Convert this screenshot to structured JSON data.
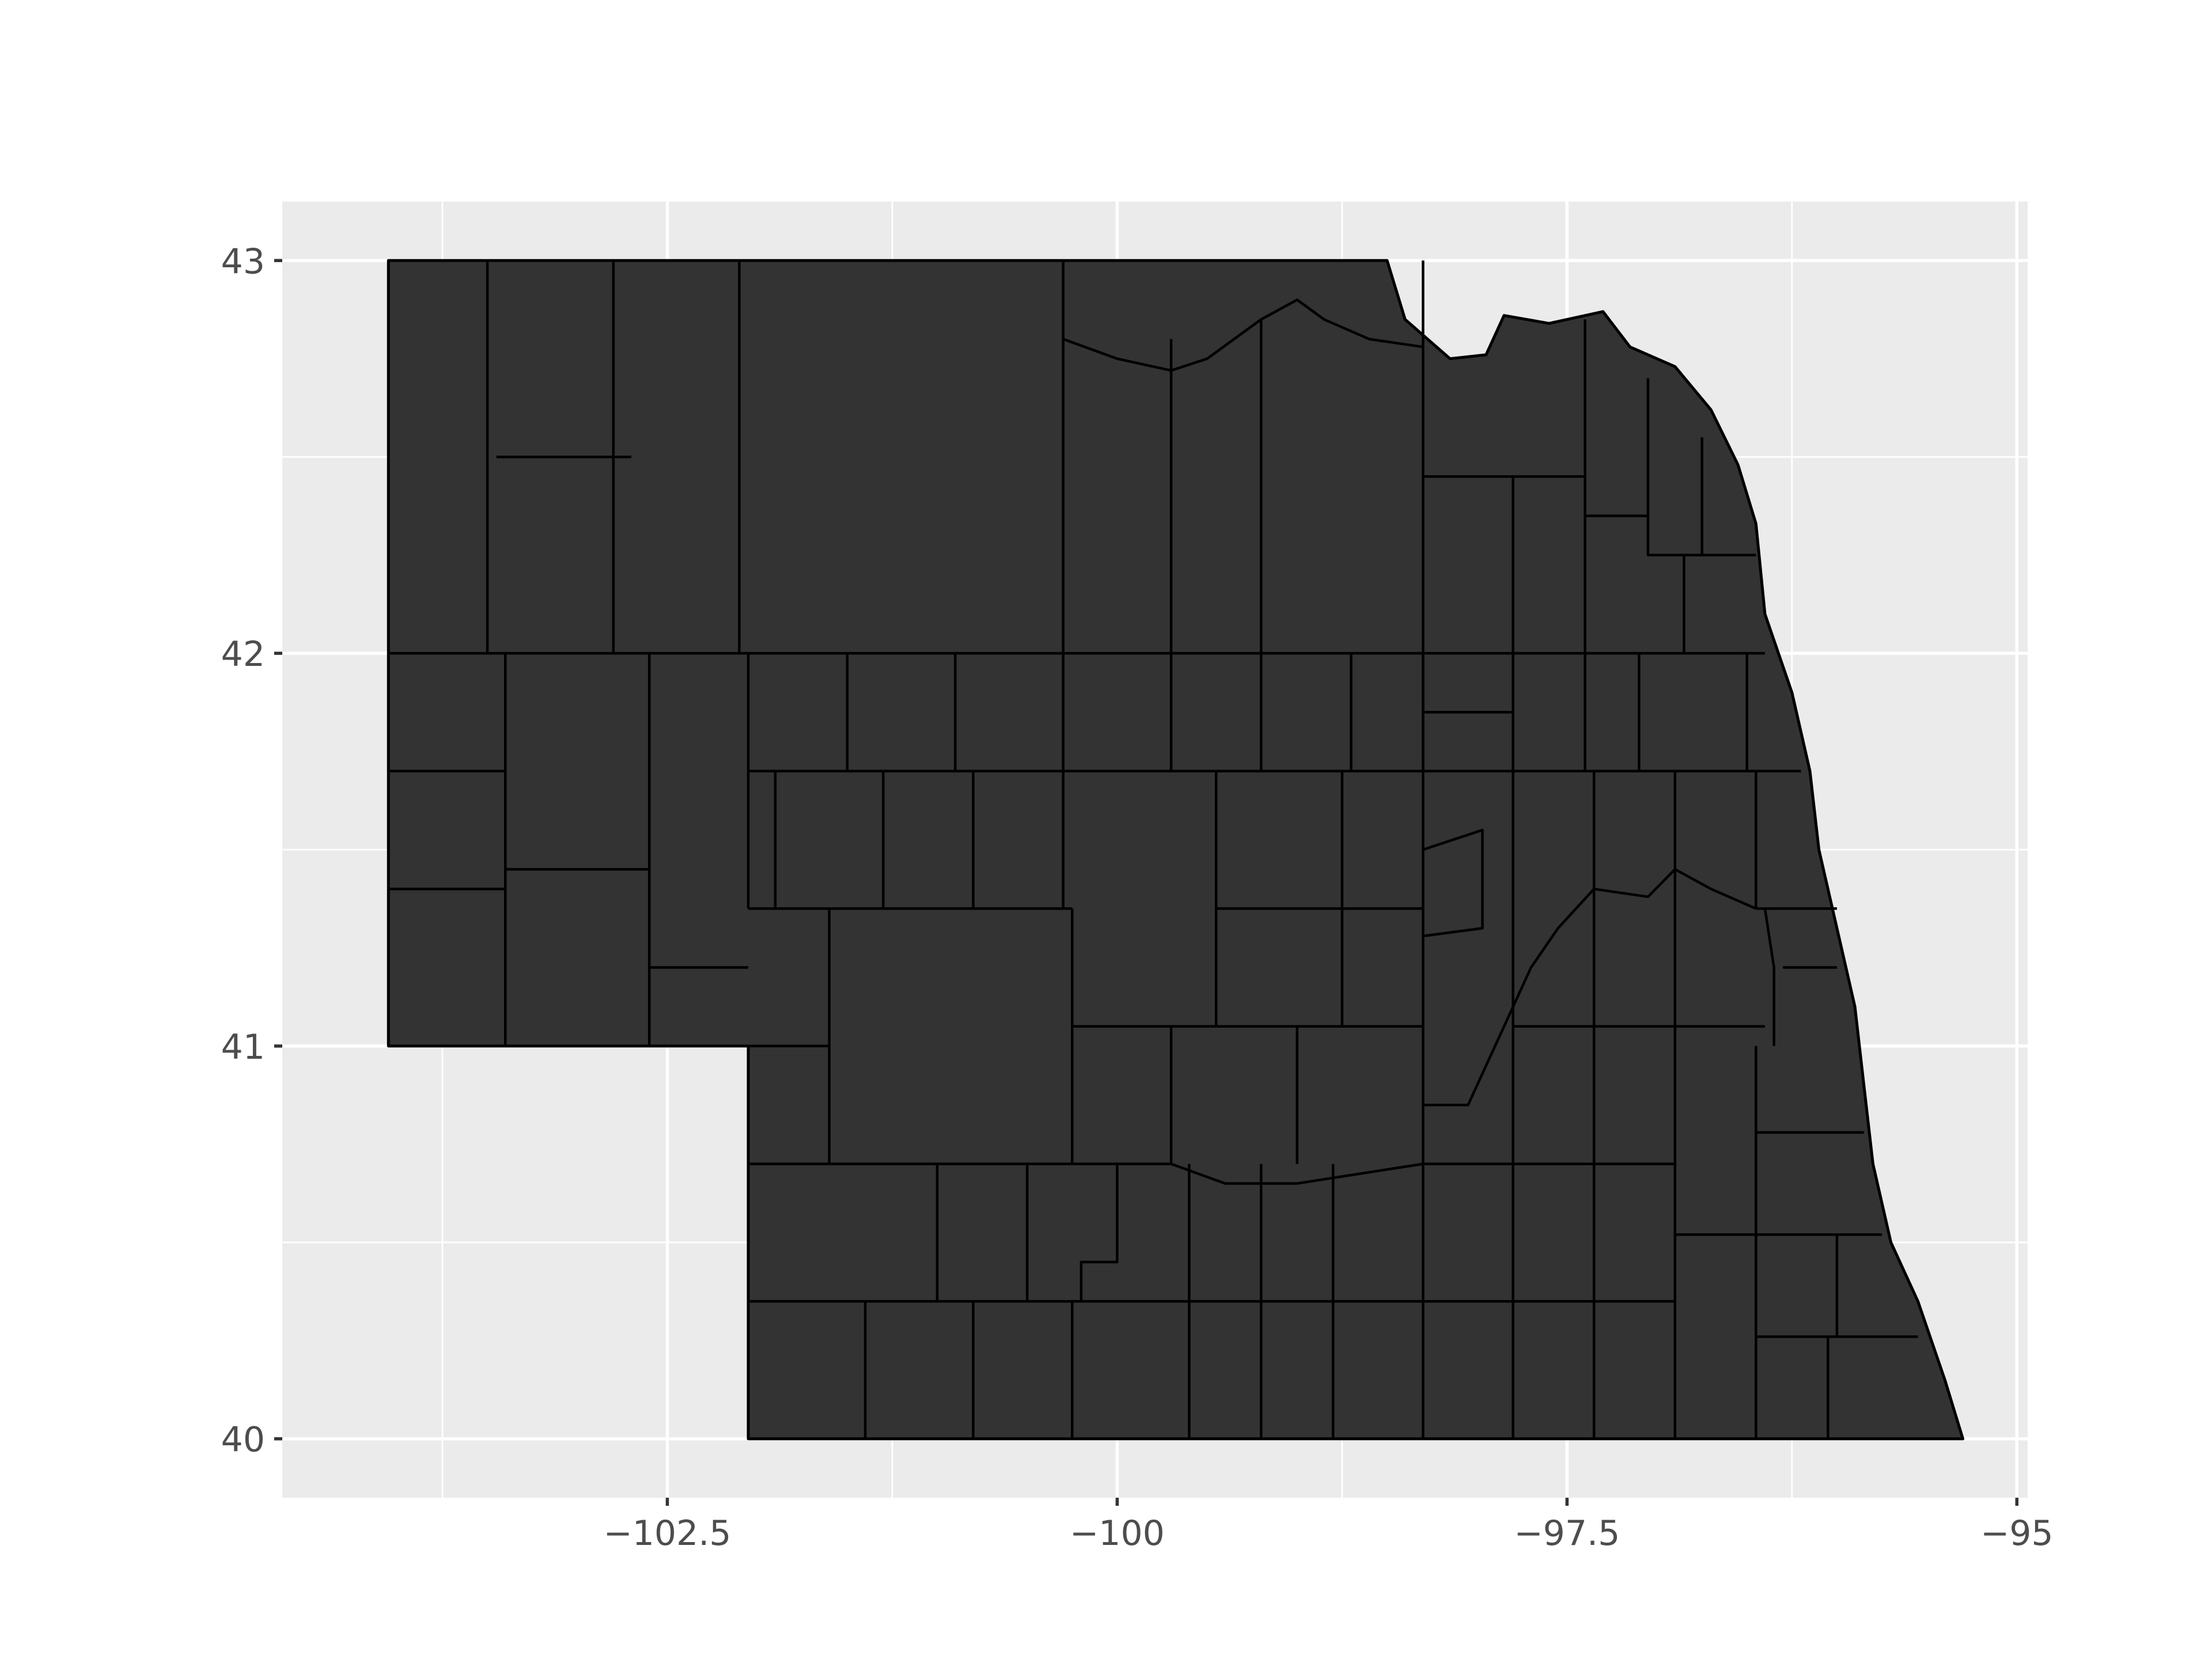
{
  "chart_data": {
    "type": "map",
    "title": "",
    "xlabel": "",
    "ylabel": "",
    "xlim": [
      -104.64,
      -94.94
    ],
    "ylim": [
      39.85,
      43.15
    ],
    "x_ticks": [
      {
        "value": -102.5,
        "label": "−102.5"
      },
      {
        "value": -100,
        "label": "−100"
      },
      {
        "value": -97.5,
        "label": "−97.5"
      },
      {
        "value": -95,
        "label": "−95"
      }
    ],
    "y_ticks": [
      {
        "value": 40,
        "label": "40"
      },
      {
        "value": 41,
        "label": "41"
      },
      {
        "value": 42,
        "label": "42"
      },
      {
        "value": 43,
        "label": "43"
      }
    ],
    "x_minor": [
      -103.75,
      -101.25,
      -98.75,
      -96.25
    ],
    "y_minor": [
      40.5,
      41.5,
      42.5
    ],
    "grid": true,
    "panel_background": "#ebebeb",
    "fill_color": "#333333",
    "border_color": "#000000",
    "state_outline": [
      [
        -104.05,
        43.0
      ],
      [
        -102.0,
        43.0
      ],
      [
        -100.0,
        43.0
      ],
      [
        -98.5,
        43.0
      ],
      [
        -98.4,
        42.85
      ],
      [
        -98.15,
        42.75
      ],
      [
        -97.95,
        42.76
      ],
      [
        -97.85,
        42.86
      ],
      [
        -97.6,
        42.84
      ],
      [
        -97.3,
        42.87
      ],
      [
        -97.15,
        42.78
      ],
      [
        -96.9,
        42.73
      ],
      [
        -96.7,
        42.62
      ],
      [
        -96.55,
        42.48
      ],
      [
        -96.45,
        42.33
      ],
      [
        -96.4,
        42.1
      ],
      [
        -96.25,
        41.9
      ],
      [
        -96.15,
        41.7
      ],
      [
        -96.1,
        41.5
      ],
      [
        -96.0,
        41.3
      ],
      [
        -95.9,
        41.1
      ],
      [
        -95.85,
        40.9
      ],
      [
        -95.8,
        40.7
      ],
      [
        -95.7,
        40.5
      ],
      [
        -95.55,
        40.35
      ],
      [
        -95.4,
        40.15
      ],
      [
        -95.3,
        40.0
      ],
      [
        -102.05,
        40.0
      ],
      [
        -102.05,
        41.0
      ],
      [
        -104.05,
        41.0
      ],
      [
        -104.05,
        43.0
      ]
    ],
    "county_lines": [
      [
        [
          -103.5,
          43.0
        ],
        [
          -103.5,
          42.0
        ]
      ],
      [
        [
          -102.8,
          43.0
        ],
        [
          -102.8,
          42.0
        ]
      ],
      [
        [
          -102.1,
          43.0
        ],
        [
          -102.1,
          42.0
        ]
      ],
      [
        [
          -104.05,
          42.0
        ],
        [
          -102.05,
          42.0
        ],
        [
          -100.0,
          42.0
        ],
        [
          -98.3,
          42.0
        ],
        [
          -96.4,
          42.0
        ]
      ],
      [
        [
          -104.05,
          41.7
        ],
        [
          -103.4,
          41.7
        ]
      ],
      [
        [
          -103.4,
          42.0
        ],
        [
          -103.4,
          41.0
        ]
      ],
      [
        [
          -104.05,
          41.4
        ],
        [
          -103.4,
          41.4
        ]
      ],
      [
        [
          -103.4,
          41.45
        ],
        [
          -102.6,
          41.45
        ]
      ],
      [
        [
          -102.6,
          42.0
        ],
        [
          -102.6,
          41.0
        ]
      ],
      [
        [
          -102.6,
          41.2
        ],
        [
          -102.05,
          41.2
        ]
      ],
      [
        [
          -103.45,
          42.5
        ],
        [
          -102.7,
          42.5
        ]
      ],
      [
        [
          -102.05,
          42.0
        ],
        [
          -102.05,
          41.7
        ]
      ],
      [
        [
          -102.05,
          41.7
        ],
        [
          -98.3,
          41.7
        ],
        [
          -96.2,
          41.7
        ]
      ],
      [
        [
          -101.5,
          42.0
        ],
        [
          -101.5,
          41.7
        ]
      ],
      [
        [
          -100.9,
          42.0
        ],
        [
          -100.9,
          41.7
        ]
      ],
      [
        [
          -100.3,
          43.0
        ],
        [
          -100.3,
          41.7
        ]
      ],
      [
        [
          -99.7,
          42.8
        ],
        [
          -99.7,
          41.7
        ]
      ],
      [
        [
          -99.2,
          42.85
        ],
        [
          -99.2,
          41.7
        ]
      ],
      [
        [
          -98.7,
          42.0
        ],
        [
          -98.7,
          41.7
        ]
      ],
      [
        [
          -100.3,
          42.8
        ],
        [
          -100.0,
          42.75
        ],
        [
          -99.7,
          42.72
        ],
        [
          -99.5,
          42.75
        ],
        [
          -99.2,
          42.85
        ],
        [
          -99.0,
          42.9
        ],
        [
          -98.85,
          42.85
        ],
        [
          -98.6,
          42.8
        ],
        [
          -98.3,
          42.78
        ]
      ],
      [
        [
          -98.3,
          43.0
        ],
        [
          -98.3,
          41.0
        ],
        [
          -98.3,
          40.0
        ]
      ],
      [
        [
          -98.3,
          42.45
        ],
        [
          -97.4,
          42.45
        ]
      ],
      [
        [
          -97.4,
          42.85
        ],
        [
          -97.4,
          42.45
        ]
      ],
      [
        [
          -97.8,
          42.45
        ],
        [
          -97.8,
          41.7
        ]
      ],
      [
        [
          -97.4,
          42.45
        ],
        [
          -97.4,
          41.7
        ]
      ],
      [
        [
          -97.4,
          42.35
        ],
        [
          -97.05,
          42.35
        ]
      ],
      [
        [
          -97.05,
          42.7
        ],
        [
          -97.05,
          42.25
        ],
        [
          -96.75,
          42.25
        ]
      ],
      [
        [
          -96.75,
          42.55
        ],
        [
          -96.75,
          42.25
        ],
        [
          -96.45,
          42.25
        ]
      ],
      [
        [
          -96.85,
          42.25
        ],
        [
          -96.85,
          42.0
        ]
      ],
      [
        [
          -98.3,
          42.0
        ],
        [
          -98.3,
          41.7
        ]
      ],
      [
        [
          -98.3,
          41.85
        ],
        [
          -97.8,
          41.85
        ]
      ],
      [
        [
          -97.1,
          42.0
        ],
        [
          -97.1,
          41.7
        ]
      ],
      [
        [
          -96.5,
          42.0
        ],
        [
          -96.5,
          41.7
        ]
      ],
      [
        [
          -102.05,
          41.7
        ],
        [
          -102.05,
          41.35
        ]
      ],
      [
        [
          -101.9,
          41.7
        ],
        [
          -101.9,
          41.35
        ]
      ],
      [
        [
          -101.3,
          41.7
        ],
        [
          -101.3,
          41.35
        ]
      ],
      [
        [
          -100.8,
          41.7
        ],
        [
          -100.8,
          41.35
        ]
      ],
      [
        [
          -100.3,
          41.7
        ],
        [
          -100.3,
          41.35
        ]
      ],
      [
        [
          -99.45,
          41.7
        ],
        [
          -99.45,
          41.35
        ]
      ],
      [
        [
          -98.75,
          41.7
        ],
        [
          -98.75,
          41.35
        ]
      ],
      [
        [
          -102.05,
          41.35
        ],
        [
          -100.25,
          41.35
        ]
      ],
      [
        [
          -101.6,
          41.35
        ],
        [
          -101.6,
          40.7
        ]
      ],
      [
        [
          -100.25,
          41.35
        ],
        [
          -100.25,
          41.05
        ]
      ],
      [
        [
          -99.45,
          41.35
        ],
        [
          -98.3,
          41.35
        ]
      ],
      [
        [
          -99.45,
          41.35
        ],
        [
          -99.45,
          41.05
        ]
      ],
      [
        [
          -98.75,
          41.35
        ],
        [
          -98.75,
          41.05
        ]
      ],
      [
        [
          -100.25,
          41.05
        ],
        [
          -98.3,
          41.05
        ]
      ],
      [
        [
          -102.05,
          41.0
        ],
        [
          -101.6,
          41.0
        ]
      ],
      [
        [
          -99.7,
          41.05
        ],
        [
          -99.7,
          40.7
        ]
      ],
      [
        [
          -99.0,
          41.05
        ],
        [
          -99.0,
          40.7
        ]
      ],
      [
        [
          -102.05,
          40.7
        ],
        [
          -101.6,
          40.7
        ],
        [
          -100.25,
          40.7
        ],
        [
          -99.7,
          40.7
        ],
        [
          -99.4,
          40.65
        ],
        [
          -99.0,
          40.65
        ],
        [
          -98.3,
          40.7
        ],
        [
          -96.9,
          40.7
        ]
      ],
      [
        [
          -100.25,
          41.05
        ],
        [
          -100.25,
          40.7
        ]
      ],
      [
        [
          -101.0,
          40.7
        ],
        [
          -101.0,
          40.35
        ]
      ],
      [
        [
          -100.5,
          40.7
        ],
        [
          -100.5,
          40.35
        ]
      ],
      [
        [
          -100.0,
          40.7
        ],
        [
          -100.0,
          40.45
        ],
        [
          -100.2,
          40.45
        ],
        [
          -100.2,
          40.35
        ]
      ],
      [
        [
          -99.6,
          40.7
        ],
        [
          -99.6,
          40.0
        ]
      ],
      [
        [
          -99.2,
          40.7
        ],
        [
          -99.2,
          40.0
        ]
      ],
      [
        [
          -98.8,
          40.7
        ],
        [
          -98.8,
          40.0
        ]
      ],
      [
        [
          -102.05,
          40.35
        ],
        [
          -96.9,
          40.35
        ]
      ],
      [
        [
          -101.4,
          40.35
        ],
        [
          -101.4,
          40.0
        ]
      ],
      [
        [
          -100.8,
          40.35
        ],
        [
          -100.8,
          40.0
        ]
      ],
      [
        [
          -100.25,
          40.35
        ],
        [
          -100.25,
          40.0
        ]
      ],
      [
        [
          -97.8,
          41.7
        ],
        [
          -97.8,
          40.0
        ]
      ],
      [
        [
          -97.35,
          41.7
        ],
        [
          -97.35,
          41.4
        ]
      ],
      [
        [
          -96.9,
          41.7
        ],
        [
          -96.9,
          40.0
        ]
      ],
      [
        [
          -96.45,
          41.7
        ],
        [
          -96.45,
          41.35
        ]
      ],
      [
        [
          -98.3,
          41.5
        ],
        [
          -97.97,
          41.55
        ],
        [
          -97.97,
          41.3
        ],
        [
          -98.3,
          41.28
        ]
      ],
      [
        [
          -97.35,
          41.4
        ],
        [
          -97.55,
          41.3
        ],
        [
          -97.7,
          41.2
        ],
        [
          -97.9,
          41.0
        ],
        [
          -98.05,
          40.85
        ],
        [
          -98.3,
          40.85
        ]
      ],
      [
        [
          -97.35,
          41.4
        ],
        [
          -97.05,
          41.38
        ],
        [
          -96.9,
          41.45
        ],
        [
          -96.7,
          41.4
        ],
        [
          -96.45,
          41.35
        ]
      ],
      [
        [
          -97.35,
          41.4
        ],
        [
          -97.35,
          40.0
        ]
      ],
      [
        [
          -96.45,
          41.35
        ],
        [
          -96.3,
          41.35
        ],
        [
          -96.0,
          41.35
        ]
      ],
      [
        [
          -96.3,
          41.2
        ],
        [
          -96.0,
          41.2
        ]
      ],
      [
        [
          -96.4,
          41.35
        ],
        [
          -96.35,
          41.2
        ],
        [
          -96.35,
          41.0
        ]
      ],
      [
        [
          -97.8,
          41.05
        ],
        [
          -96.4,
          41.05
        ]
      ],
      [
        [
          -96.45,
          41.0
        ],
        [
          -96.45,
          40.5
        ]
      ],
      [
        [
          -96.45,
          40.78
        ],
        [
          -95.85,
          40.78
        ]
      ],
      [
        [
          -96.9,
          40.52
        ],
        [
          -95.75,
          40.52
        ]
      ],
      [
        [
          -96.45,
          40.52
        ],
        [
          -96.45,
          40.0
        ]
      ],
      [
        [
          -96.0,
          40.52
        ],
        [
          -96.0,
          40.26
        ]
      ],
      [
        [
          -96.45,
          40.26
        ],
        [
          -95.55,
          40.26
        ]
      ],
      [
        [
          -96.05,
          40.26
        ],
        [
          -96.05,
          40.0
        ]
      ]
    ]
  }
}
